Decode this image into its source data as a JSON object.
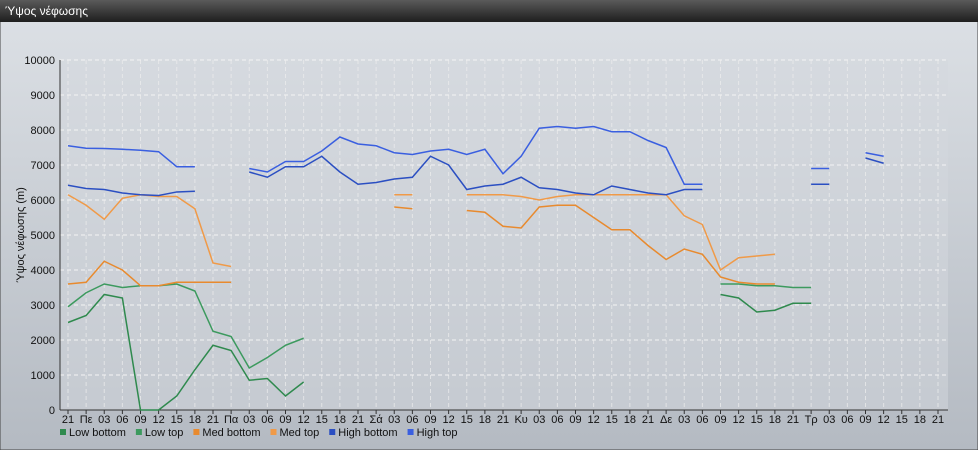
{
  "chart_data": {
    "type": "line",
    "title": "Ύψος νέφωσης",
    "y_label": "Ύψος νέφωσης (m)",
    "categories": [
      "21",
      "Πε",
      "03",
      "06",
      "09",
      "12",
      "15",
      "18",
      "21",
      "Πα",
      "03",
      "06",
      "09",
      "12",
      "15",
      "18",
      "21",
      "Σά",
      "03",
      "06",
      "09",
      "12",
      "15",
      "18",
      "21",
      "Κυ",
      "03",
      "06",
      "09",
      "12",
      "15",
      "18",
      "21",
      "Δε",
      "03",
      "06",
      "09",
      "12",
      "15",
      "18",
      "21",
      "Τρ",
      "03",
      "06",
      "09",
      "12",
      "15",
      "18",
      "21"
    ],
    "ylim": [
      0,
      10000
    ],
    "yticks": [
      0,
      1000,
      2000,
      3000,
      4000,
      5000,
      6000,
      7000,
      8000,
      9000,
      10000
    ],
    "grid": true,
    "legend": "bottom-left",
    "series": [
      {
        "name": "Low bottom",
        "color": "#2f8a4e",
        "values": [
          2500,
          2700,
          3300,
          3200,
          0,
          0,
          400,
          1150,
          1850,
          1700,
          850,
          900,
          400,
          800,
          null,
          null,
          null,
          null,
          null,
          null,
          null,
          null,
          null,
          null,
          null,
          null,
          null,
          null,
          null,
          null,
          null,
          null,
          null,
          null,
          null,
          null,
          3300,
          3200,
          2800,
          2850,
          3050,
          3050,
          null,
          null,
          null,
          null,
          null,
          null,
          null
        ]
      },
      {
        "name": "Low top",
        "color": "#3c9a5e",
        "values": [
          2950,
          3350,
          3600,
          3500,
          3550,
          3550,
          3600,
          3400,
          2250,
          2100,
          1200,
          1500,
          1850,
          2050,
          null,
          null,
          null,
          null,
          null,
          null,
          null,
          null,
          null,
          null,
          null,
          null,
          null,
          null,
          null,
          null,
          null,
          null,
          null,
          null,
          null,
          null,
          3600,
          3600,
          3550,
          3550,
          3500,
          3500,
          null,
          null,
          null,
          null,
          null,
          null,
          null
        ]
      },
      {
        "name": "Med bottom",
        "color": "#e88a2e",
        "values": [
          3600,
          3650,
          4250,
          4000,
          3550,
          3550,
          3650,
          3650,
          3650,
          3650,
          null,
          null,
          null,
          null,
          null,
          null,
          null,
          null,
          5800,
          5750,
          null,
          null,
          5700,
          5650,
          5250,
          5200,
          5800,
          5850,
          5850,
          5500,
          5150,
          5150,
          4700,
          4300,
          4600,
          4450,
          3800,
          3650,
          3600,
          3600,
          null,
          null,
          null,
          null,
          null,
          null,
          null,
          null,
          null
        ]
      },
      {
        "name": "Med top",
        "color": "#f09a48",
        "values": [
          6150,
          5850,
          5450,
          6050,
          6150,
          6100,
          6100,
          5750,
          4200,
          4100,
          null,
          null,
          null,
          null,
          null,
          null,
          null,
          null,
          6150,
          6150,
          null,
          null,
          6150,
          6150,
          6150,
          6100,
          6000,
          6100,
          6150,
          6150,
          6150,
          6150,
          6150,
          6150,
          5550,
          5300,
          4000,
          4350,
          4400,
          4450,
          null,
          null,
          null,
          null,
          null,
          null,
          null,
          null,
          null
        ]
      },
      {
        "name": "High bottom",
        "color": "#2b4fc2",
        "values": [
          6420,
          6330,
          6300,
          6200,
          6150,
          6130,
          6230,
          6250,
          null,
          null,
          6800,
          6650,
          6950,
          6950,
          7250,
          6800,
          6450,
          6500,
          6600,
          6650,
          7250,
          7000,
          6300,
          6400,
          6450,
          6650,
          6350,
          6300,
          6200,
          6150,
          6400,
          6300,
          6200,
          6150,
          6300,
          6300,
          null,
          null,
          null,
          null,
          null,
          6450,
          6450,
          null,
          7200,
          7050,
          null,
          null,
          null
        ]
      },
      {
        "name": "High top",
        "color": "#3a5fe0",
        "values": [
          7550,
          7480,
          7470,
          7450,
          7420,
          7380,
          6950,
          6950,
          null,
          null,
          6900,
          6800,
          7100,
          7100,
          7400,
          7800,
          7600,
          7550,
          7350,
          7300,
          7400,
          7450,
          7300,
          7450,
          6750,
          7250,
          8050,
          8100,
          8050,
          8100,
          7950,
          7950,
          7700,
          7500,
          6450,
          6450,
          null,
          null,
          null,
          null,
          null,
          6900,
          6900,
          null,
          7350,
          7250,
          null,
          null,
          null
        ]
      }
    ]
  }
}
